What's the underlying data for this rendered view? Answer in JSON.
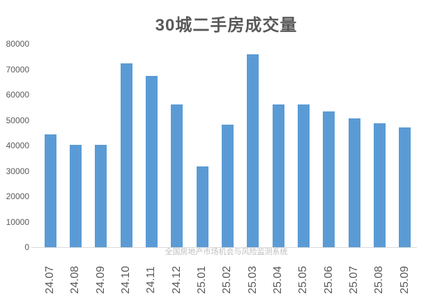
{
  "title": "30城二手房成交量",
  "watermark": "全国房地产市场机会与风险监测系统",
  "colors": {
    "bar": "#5b9bd5",
    "title_text": "#595959",
    "axis_text": "#595959",
    "baseline": "#d9d9d9",
    "watermark": "#bfbfbf"
  },
  "chart_data": {
    "type": "bar",
    "title": "30城二手房成交量",
    "categories": [
      "24.07",
      "24.08",
      "24.09",
      "24.10",
      "24.11",
      "24.12",
      "25.01",
      "25.02",
      "25.03",
      "25.04",
      "25.05",
      "25.06",
      "25.07",
      "25.08",
      "25.09"
    ],
    "values": [
      44400,
      40400,
      40400,
      72400,
      67400,
      56100,
      31800,
      48200,
      75900,
      56300,
      56300,
      53300,
      50700,
      48800,
      47100
    ],
    "xlabel": "",
    "ylabel": "",
    "ylim": [
      0,
      80000
    ],
    "yticks": [
      0,
      10000,
      20000,
      30000,
      40000,
      50000,
      60000,
      70000,
      80000
    ],
    "grid": false,
    "legend_position": "none",
    "x_tick_rotation": 90,
    "bar_color": "#5b9bd5"
  }
}
